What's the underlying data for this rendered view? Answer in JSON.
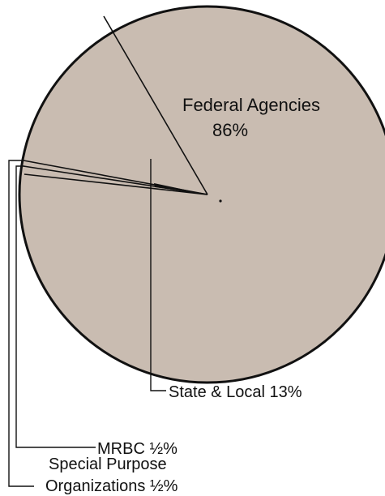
{
  "chart_data": {
    "type": "pie",
    "slices": [
      {
        "label": "Federal Agencies",
        "value_label": "86%",
        "value": 86
      },
      {
        "label": "State & Local",
        "value_label": "13%",
        "value": 13
      },
      {
        "label": "MRBC",
        "value_label": "½%",
        "value": 0.5
      },
      {
        "label": "Special Purpose Organizations",
        "value_label": "½%",
        "value": 0.5
      }
    ],
    "labels": {
      "federal_name": "Federal Agencies",
      "federal_pct": "86%",
      "state": "State & Local 13%",
      "mrbc": "MRBC ½%",
      "special_line1": "Special Purpose",
      "special_line2": "Organizations ½%"
    },
    "colors": {
      "pie_fill": "#c9bcb1",
      "outline": "#111111"
    }
  }
}
